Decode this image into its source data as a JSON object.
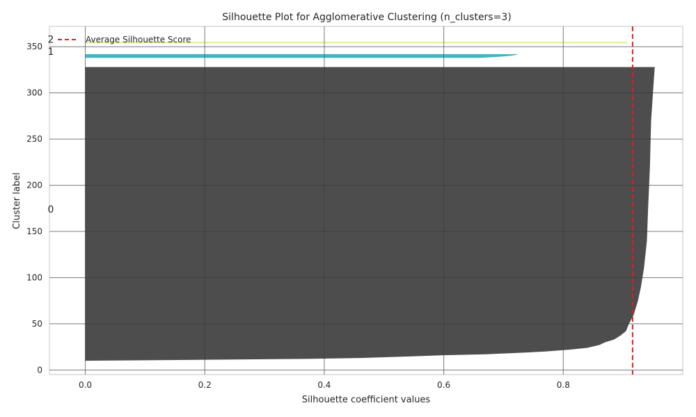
{
  "chart_data": {
    "type": "area",
    "title": "Silhouette Plot for Agglomerative Clustering (n_clusters=3)",
    "xlabel": "Silhouette coefficient values",
    "ylabel": "Cluster label",
    "xlim": [
      -0.06,
      1.0
    ],
    "ylim": [
      -5,
      372
    ],
    "x_ticks": [
      0.0,
      0.2,
      0.4,
      0.6,
      0.8
    ],
    "x_tick_labels": [
      "0.0",
      "0.2",
      "0.4",
      "0.6",
      "0.8"
    ],
    "y_ticks": [
      0,
      50,
      100,
      150,
      200,
      250,
      300,
      350
    ],
    "y_tick_labels": [
      "0",
      "50",
      "100",
      "150",
      "200",
      "250",
      "300",
      "350"
    ],
    "grid": true,
    "legend_position": "top-left",
    "average_silhouette_score": 0.916,
    "average_line_color": "#e41a1c",
    "average_line_label": "Average Silhouette Score",
    "series": [
      {
        "label": "0",
        "label_y": 174,
        "color": "#4d4d4d",
        "y_start": 10,
        "y_end": 328,
        "profile": [
          [
            10,
            0.0
          ],
          [
            12,
            0.37
          ],
          [
            13,
            0.46
          ],
          [
            15,
            0.56
          ],
          [
            16,
            0.6
          ],
          [
            17,
            0.67
          ],
          [
            19,
            0.74
          ],
          [
            20,
            0.77
          ],
          [
            22,
            0.81
          ],
          [
            24,
            0.84
          ],
          [
            27,
            0.86
          ],
          [
            30,
            0.87
          ],
          [
            33,
            0.885
          ],
          [
            37,
            0.895
          ],
          [
            42,
            0.905
          ],
          [
            50,
            0.91
          ],
          [
            60,
            0.918
          ],
          [
            75,
            0.925
          ],
          [
            90,
            0.93
          ],
          [
            110,
            0.935
          ],
          [
            140,
            0.94
          ],
          [
            175,
            0.942
          ],
          [
            220,
            0.945
          ],
          [
            270,
            0.947
          ],
          [
            328,
            0.953
          ]
        ]
      },
      {
        "label": "1",
        "label_y": 345,
        "color": "#41b6c4",
        "y_start": 338,
        "y_end": 342,
        "profile": [
          [
            338,
            0.66
          ],
          [
            339,
            0.69
          ],
          [
            340,
            0.71
          ],
          [
            341,
            0.72
          ],
          [
            342,
            0.725
          ]
        ]
      },
      {
        "label": "2",
        "label_y": 358,
        "color": "#d9ef8b",
        "y_start": 354,
        "y_end": 355,
        "profile": [
          [
            354,
            0.906
          ],
          [
            355,
            0.907
          ]
        ]
      }
    ]
  }
}
